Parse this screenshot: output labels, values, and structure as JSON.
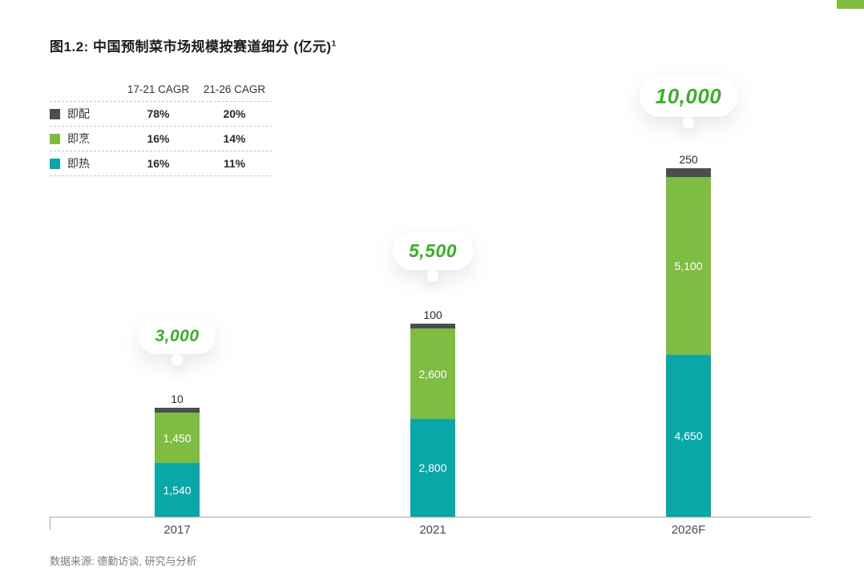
{
  "title": "图1.2: 中国预制菜市场规模按赛道细分 (亿元)",
  "title_superscript": "1",
  "source": "数据来源: 德勤访谈, 研究与分析",
  "colors": {
    "green": "#7FBC42",
    "teal": "#09A7A7",
    "dark": "#4D4D4F",
    "total_green": "#3DAE2B",
    "axis": "#a8a8a8"
  },
  "chart_data": {
    "type": "bar",
    "stacked": true,
    "title": "中国预制菜市场规模按赛道细分 (亿元)",
    "unit": "亿元",
    "categories": [
      "2017",
      "2021",
      "2026F"
    ],
    "legend_columns": [
      "17-21 CAGR",
      "21-26 CAGR"
    ],
    "series": [
      {
        "name": "即热",
        "color": "#09A7A7",
        "values": [
          1540,
          2800,
          4650
        ],
        "labels": [
          "1,540",
          "2,800",
          "4,650"
        ],
        "label_position": "inside",
        "cagr_17_21": "16%",
        "cagr_21_26": "11%"
      },
      {
        "name": "即烹",
        "color": "#7FBC42",
        "values": [
          1450,
          2600,
          5100
        ],
        "labels": [
          "1,450",
          "2,600",
          "5,100"
        ],
        "label_position": "inside",
        "cagr_17_21": "16%",
        "cagr_21_26": "14%"
      },
      {
        "name": "即配",
        "color": "#4D4D4F",
        "values": [
          10,
          100,
          250
        ],
        "labels": [
          "10",
          "100",
          "250"
        ],
        "label_position": "outside",
        "cagr_17_21": "78%",
        "cagr_21_26": "20%"
      }
    ],
    "totals": [
      "3,000",
      "5,500",
      "10,000"
    ],
    "ylim": [
      0,
      10000
    ],
    "grid": false,
    "legend_position": "top-left"
  }
}
